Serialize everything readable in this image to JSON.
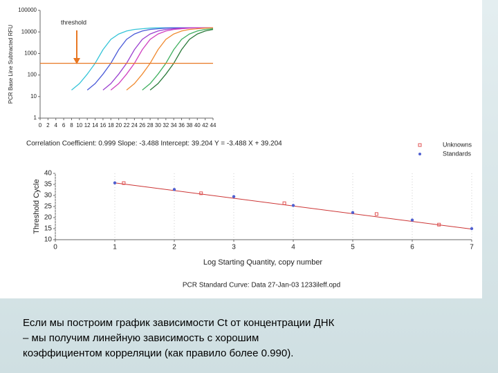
{
  "chart_data": [
    {
      "type": "line",
      "ylabel": "PCR Base Line Subtracted RFU",
      "log_y": true,
      "x": [
        8,
        10,
        12,
        14,
        16,
        18,
        20,
        22,
        24,
        26,
        28,
        30,
        32,
        34,
        36,
        38,
        40,
        42,
        44
      ],
      "xlim": [
        0,
        44
      ],
      "xticks": [
        0,
        2,
        4,
        6,
        8,
        10,
        12,
        14,
        16,
        18,
        20,
        22,
        24,
        26,
        28,
        30,
        32,
        34,
        36,
        38,
        40,
        42,
        44
      ],
      "ylim": [
        1,
        100000
      ],
      "yticks": [
        1,
        10,
        100,
        1000,
        10000,
        100000
      ],
      "threshold": 350,
      "threshold_label": "threshold",
      "threshold_color": "#e87722",
      "series": [
        {
          "color": "#35c4d8",
          "values": [
            20,
            40,
            110,
            350,
            1500,
            4500,
            8000,
            11000,
            13000,
            14000,
            15000,
            15500,
            15500,
            15500,
            15500,
            15500,
            15500,
            15500,
            15500
          ]
        },
        {
          "color": "#4a5ad8",
          "values": [
            null,
            null,
            20,
            40,
            110,
            350,
            1500,
            4500,
            8000,
            11000,
            13000,
            14000,
            15000,
            15500,
            15500,
            15500,
            15500,
            15500,
            15500
          ]
        },
        {
          "color": "#9a40d0",
          "values": [
            null,
            null,
            null,
            null,
            20,
            40,
            110,
            350,
            1500,
            4500,
            8000,
            11000,
            13000,
            14000,
            15000,
            15500,
            15500,
            15500,
            15500
          ]
        },
        {
          "color": "#d040c0",
          "values": [
            null,
            null,
            null,
            null,
            null,
            20,
            40,
            110,
            350,
            1500,
            4500,
            8000,
            11000,
            13000,
            14000,
            15000,
            15500,
            15500,
            15500
          ]
        },
        {
          "color": "#f08a30",
          "values": [
            null,
            null,
            null,
            null,
            null,
            null,
            null,
            20,
            40,
            110,
            350,
            1500,
            4500,
            8000,
            11000,
            13000,
            14000,
            15000,
            15500
          ]
        },
        {
          "color": "#40b060",
          "values": [
            null,
            null,
            null,
            null,
            null,
            null,
            null,
            null,
            null,
            20,
            40,
            110,
            350,
            1500,
            4500,
            8000,
            11000,
            13000,
            14000
          ]
        },
        {
          "color": "#2a7a3a",
          "values": [
            null,
            null,
            null,
            null,
            null,
            null,
            null,
            null,
            null,
            null,
            20,
            40,
            110,
            350,
            1500,
            4500,
            8000,
            11000,
            13000
          ]
        }
      ]
    },
    {
      "type": "scatter",
      "annotation": "Correlation Coefficient: 0.999  Slope: -3.488  Intercept: 39.204  Y = -3.488 X + 39.204",
      "xlabel": "Log Starting Quantity, copy number",
      "ylabel": "Threshold Cycle",
      "xlim": [
        0,
        7
      ],
      "xticks": [
        0,
        1,
        2,
        3,
        4,
        5,
        6,
        7
      ],
      "ylim": [
        10,
        40
      ],
      "yticks": [
        10,
        15,
        20,
        25,
        30,
        35,
        40
      ],
      "fit": {
        "slope": -3.488,
        "intercept": 39.204,
        "color": "#cc3333"
      },
      "legend": "top-right",
      "series": [
        {
          "name": "Unknowns",
          "color": "#e05050",
          "marker": "square",
          "x": [
            1.15,
            2.45,
            3.85,
            5.4,
            6.45
          ],
          "values": [
            35.6,
            31,
            26.5,
            21.6,
            16.8
          ]
        },
        {
          "name": "Standards",
          "color": "#5060d0",
          "marker": "circle",
          "x": [
            1,
            2,
            3,
            4,
            5,
            6,
            7
          ],
          "values": [
            35.7,
            32.7,
            29.5,
            25.5,
            22.3,
            18.9,
            15.0
          ]
        }
      ],
      "footer": "PCR Standard Curve: Data 27-Jan-03 1233ileff.opd"
    }
  ],
  "caption": [
    "Если мы построим график зависимости  Ct от концентрации ДНК",
    "– мы получим линейную зависимость с хорошим",
    "коэффициентом корреляции (как правило более  0.990)."
  ]
}
